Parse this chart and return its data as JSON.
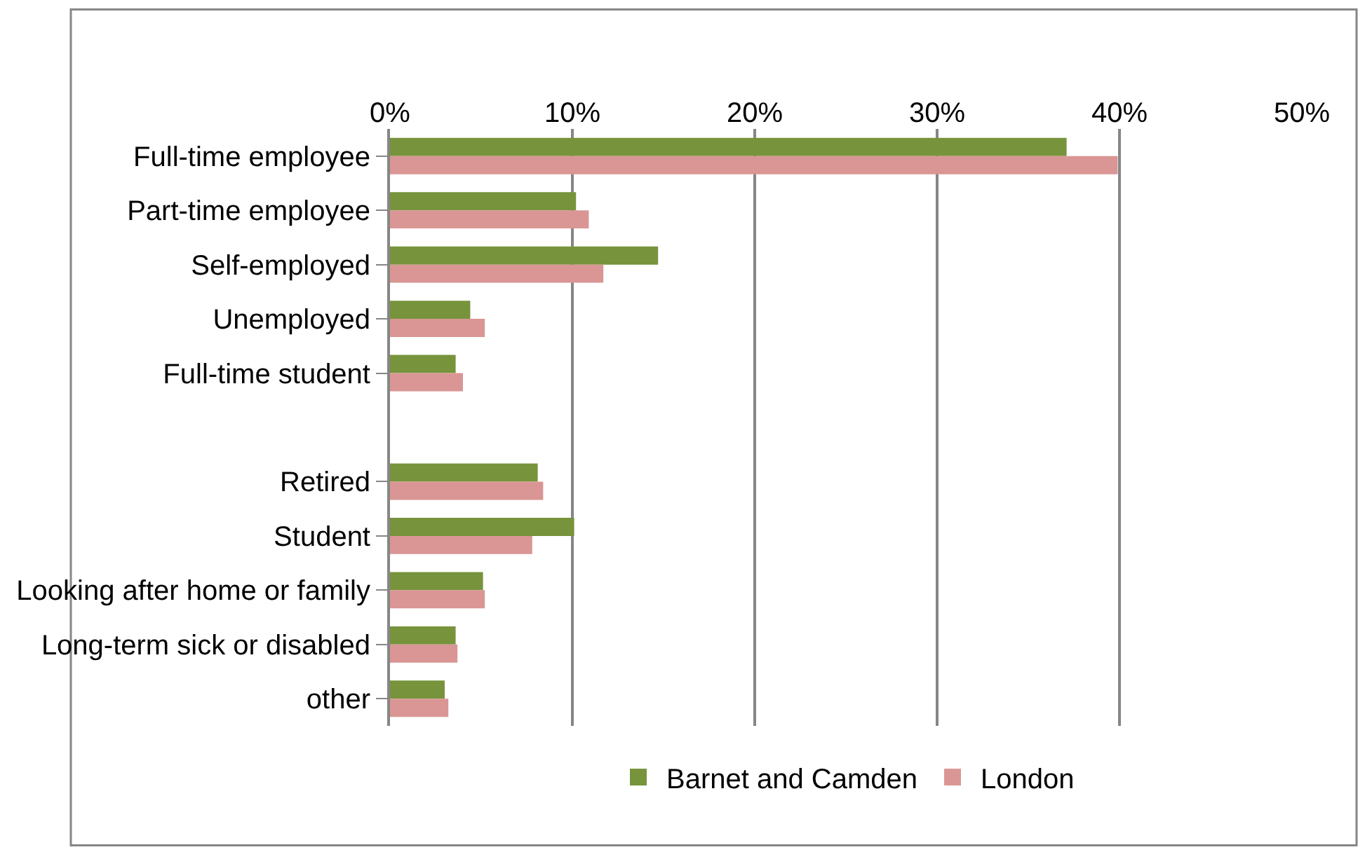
{
  "chart_data": {
    "type": "bar",
    "orientation": "horizontal",
    "categories": [
      "Full-time employee",
      "Part-time employee",
      "Self-employed",
      "Unemployed",
      "Full-time student",
      null,
      "Retired",
      "Student",
      "Looking after home or family",
      "Long-term sick or disabled",
      "other"
    ],
    "series": [
      {
        "name": "Barnet and Camden",
        "color": "#77933c",
        "values": [
          37.1,
          10.2,
          14.7,
          4.4,
          3.6,
          null,
          8.1,
          10.1,
          5.1,
          3.6,
          3.0
        ]
      },
      {
        "name": "London",
        "color": "#d99694",
        "values": [
          39.9,
          10.9,
          11.7,
          5.2,
          4.0,
          null,
          8.4,
          7.8,
          5.2,
          3.7,
          3.2
        ]
      }
    ],
    "xlim": [
      0,
      50
    ],
    "xticks": [
      {
        "value": 0,
        "label": "0%"
      },
      {
        "value": 10,
        "label": "10%"
      },
      {
        "value": 20,
        "label": "20%"
      },
      {
        "value": 30,
        "label": "30%"
      },
      {
        "value": 40,
        "label": "40%"
      },
      {
        "value": 50,
        "label": "50%"
      }
    ],
    "grid": "x",
    "legend": "bottom"
  }
}
